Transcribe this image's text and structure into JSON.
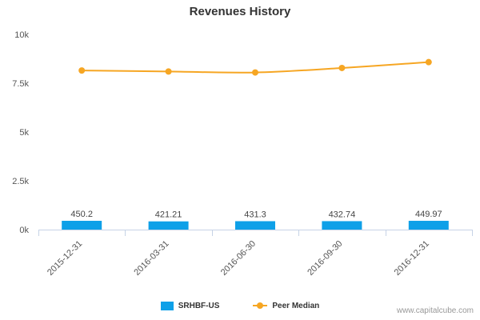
{
  "colors": {
    "bar": "#0ea0e8",
    "line": "#f6a623",
    "axis": "#c6d3e6",
    "grid": "#e6e6e6",
    "tick_text": "#555555",
    "label_text": "#444444"
  },
  "watermark": "www.capitalcube.com",
  "chart_data": {
    "type": "bar",
    "title": "Revenues History",
    "categories": [
      "2015-12-31",
      "2016-03-31",
      "2016-06-30",
      "2016-09-30",
      "2016-12-31"
    ],
    "ylim": [
      0,
      10000
    ],
    "yticks": [
      0,
      2500,
      5000,
      7500,
      10000
    ],
    "ytick_labels": [
      "0k",
      "2.5k",
      "5k",
      "7.5k",
      "10k"
    ],
    "series": [
      {
        "name": "SRHBF-US",
        "type": "bar",
        "values": [
          450.2,
          421.21,
          431.3,
          432.74,
          449.97
        ],
        "labels": [
          "450.2",
          "421.21",
          "431.3",
          "432.74",
          "449.97"
        ]
      },
      {
        "name": "Peer Median",
        "type": "line",
        "values": [
          8150,
          8100,
          8050,
          8280,
          8580
        ]
      }
    ],
    "grid": false,
    "legend": "bottom"
  }
}
